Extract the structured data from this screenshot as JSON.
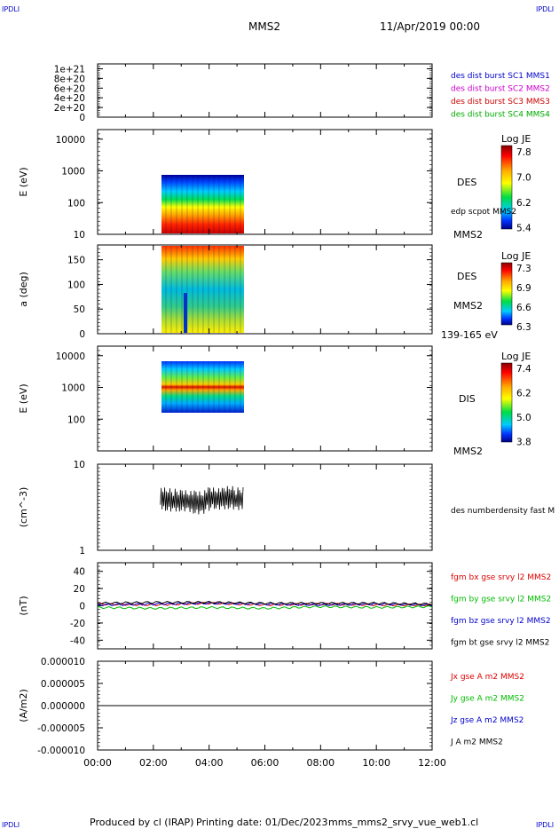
{
  "header": {
    "corner_label": "IPDLI",
    "spacecraft": "MMS2",
    "date": "11/Apr/2019 00:00"
  },
  "footer": {
    "produced_by": "Produced by cl (IRAP)",
    "printing_date": "Printing date: 01/Dec/2023",
    "filename": "mms_mms2_srvy_vue_web1.cl"
  },
  "colors": {
    "mms1": "#0000cc",
    "mms2": "#cc00cc",
    "mms3": "#cc0000",
    "mms4": "#00aa00",
    "bx": "#dd0000",
    "by": "#00bb00",
    "bz": "#0000cc",
    "bt": "#000000"
  },
  "chart_data": [
    {
      "type": "line",
      "panel": "des_dist_burst",
      "ylabel": "",
      "ylim": [
        0,
        1.1e+21
      ],
      "yticks": [
        "1e+21",
        "8e+20",
        "6e+20",
        "4e+20",
        "2e+20",
        "0"
      ],
      "xlim": [
        "00:00",
        "12:00"
      ],
      "series": [
        {
          "name": "des dist burst SC1 MMS1",
          "color": "#0000cc",
          "x": [
            0,
            12
          ],
          "y": [
            0,
            0
          ]
        },
        {
          "name": "des dist burst SC2 MMS2",
          "color": "#cc00cc",
          "x": [
            0,
            12
          ],
          "y": [
            0,
            0
          ]
        },
        {
          "name": "des dist burst SC3 MMS3",
          "color": "#cc0000",
          "x": [
            0,
            12
          ],
          "y": [
            0,
            0
          ]
        },
        {
          "name": "des dist burst SC4 MMS4",
          "color": "#00aa00",
          "x": [
            0,
            12
          ],
          "y": [
            0,
            0
          ]
        }
      ]
    },
    {
      "type": "heatmap",
      "panel": "des_energy",
      "ylabel": "E (eV)",
      "yscale": "log",
      "ylim": [
        10,
        20000
      ],
      "yticks": [
        "10000",
        "1000",
        "100",
        "10"
      ],
      "time_range_hours": [
        2.25,
        5.25
      ],
      "value_range": [
        10,
        1000
      ],
      "instrument": "DES",
      "secondary": "edp scpot MMS2",
      "spacecraft": "MMS2",
      "colorbar": {
        "title": "Log JE",
        "ticks": [
          "7.8",
          "7.0",
          "6.2",
          "5.4"
        ]
      }
    },
    {
      "type": "heatmap",
      "panel": "des_pitch_angle",
      "ylabel": "a (deg)",
      "ylim": [
        0,
        180
      ],
      "yticks": [
        "150",
        "100",
        "50",
        "0"
      ],
      "time_range_hours": [
        2.25,
        5.25
      ],
      "instrument": "DES",
      "spacecraft": "MMS2",
      "energy_range": "139-165 eV",
      "colorbar": {
        "title": "Log JE",
        "ticks": [
          "7.3",
          "6.9",
          "6.6",
          "6.3"
        ]
      }
    },
    {
      "type": "heatmap",
      "panel": "dis_energy",
      "ylabel": "E (eV)",
      "yscale": "log",
      "ylim": [
        10,
        20000
      ],
      "yticks": [
        "10000",
        "1000",
        "100"
      ],
      "time_range_hours": [
        2.25,
        5.25
      ],
      "value_range": [
        200,
        10000
      ],
      "instrument": "DIS",
      "spacecraft": "MMS2",
      "colorbar": {
        "title": "Log JE",
        "ticks": [
          "7.4",
          "6.2",
          "5.0",
          "3.8"
        ]
      }
    },
    {
      "type": "line",
      "panel": "number_density",
      "ylabel": "(cm^-3)",
      "yscale": "log",
      "ylim": [
        1,
        10
      ],
      "yticks": [
        "10",
        "1"
      ],
      "series": [
        {
          "name": "des numberdensity fast M",
          "color": "#000000",
          "x": [
            2.25,
            2.5,
            2.75,
            3.0,
            3.25,
            3.5,
            3.75,
            4.0,
            4.25,
            4.5,
            4.75,
            5.0,
            5.25
          ],
          "y": [
            3.9,
            3.8,
            3.7,
            3.9,
            3.8,
            3.7,
            3.6,
            4.0,
            3.9,
            3.8,
            4.1,
            3.8,
            4.2
          ]
        }
      ]
    },
    {
      "type": "line",
      "panel": "magnetic_field",
      "ylabel": "(nT)",
      "ylim": [
        -50,
        50
      ],
      "yticks": [
        "40",
        "20",
        "0",
        "-20",
        "-40"
      ],
      "series": [
        {
          "name": "fgm bx gse srvy l2 MMS2",
          "color": "#dd0000",
          "x": [
            0,
            2,
            4,
            6,
            8,
            10,
            12
          ],
          "y": [
            2,
            1,
            3,
            1,
            2,
            1,
            1
          ]
        },
        {
          "name": "fgm by gse srvy l2 MMS2",
          "color": "#00bb00",
          "x": [
            0,
            2,
            4,
            6,
            8,
            10,
            12
          ],
          "y": [
            -2,
            -3,
            -2,
            -3,
            -1,
            -2,
            -1
          ]
        },
        {
          "name": "fgm bz gse srvy l2 MMS2",
          "color": "#0000cc",
          "x": [
            0,
            2,
            4,
            6,
            8,
            10,
            12
          ],
          "y": [
            1,
            2,
            3,
            2,
            1,
            2,
            1
          ]
        },
        {
          "name": "fgm bt gse srvy l2 MMS2",
          "color": "#000000",
          "x": [
            0,
            2,
            4,
            6,
            8,
            10,
            12
          ],
          "y": [
            3,
            4,
            4,
            3,
            3,
            3,
            2
          ]
        }
      ]
    },
    {
      "type": "line",
      "panel": "current_density",
      "ylabel": "(A/m2)",
      "ylim": [
        -1e-05,
        1e-05
      ],
      "yticks": [
        "0.000010",
        "0.000005",
        "0.000000",
        "-0.000005",
        "-0.000010"
      ],
      "xticks": [
        "00:00",
        "02:00",
        "04:00",
        "06:00",
        "08:00",
        "10:00",
        "12:00"
      ],
      "series": [
        {
          "name": "Jx gse A m2 MMS2",
          "color": "#dd0000",
          "x": [
            0,
            12
          ],
          "y": [
            0,
            0
          ]
        },
        {
          "name": "Jy gse A m2 MMS2",
          "color": "#00bb00",
          "x": [
            0,
            12
          ],
          "y": [
            0,
            0
          ]
        },
        {
          "name": "Jz gse A m2 MMS2",
          "color": "#0000cc",
          "x": [
            0,
            12
          ],
          "y": [
            0,
            0
          ]
        },
        {
          "name": "J A m2 MMS2",
          "color": "#000000",
          "x": [
            0,
            12
          ],
          "y": [
            0,
            0
          ]
        }
      ]
    }
  ]
}
